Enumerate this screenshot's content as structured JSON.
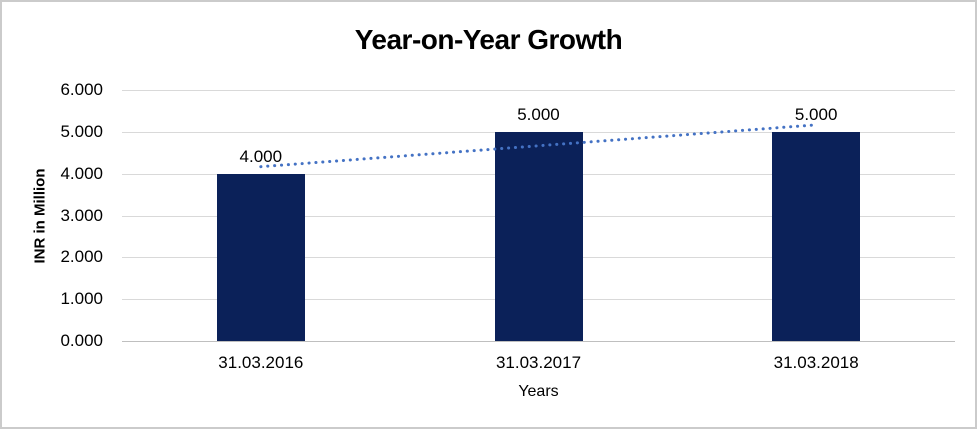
{
  "chart_data": {
    "type": "bar",
    "title": "Year-on-Year Growth",
    "xlabel": "Years",
    "ylabel": "INR in Million",
    "categories": [
      "31.03.2016",
      "31.03.2017",
      "31.03.2018"
    ],
    "values": [
      4000,
      5000,
      5000
    ],
    "data_labels": [
      "4.000",
      "5.000",
      "5.000"
    ],
    "y_ticks": [
      0,
      1000,
      2000,
      3000,
      4000,
      5000,
      6000
    ],
    "y_tick_labels": [
      "0.000",
      "1.000",
      "2.000",
      "3.000",
      "4.000",
      "5.000",
      "6.000"
    ],
    "ylim": [
      0,
      6000
    ],
    "grid": true,
    "legend": "none",
    "trendline": {
      "kind": "linear",
      "style": "dotted"
    },
    "colors": {
      "bar": "#0B2159",
      "trendline": "#4472C4",
      "gridline": "#D9D9D9",
      "axis_line": "#BFBFBF",
      "text": "#000000",
      "frame_border": "#CBCBCB"
    }
  }
}
